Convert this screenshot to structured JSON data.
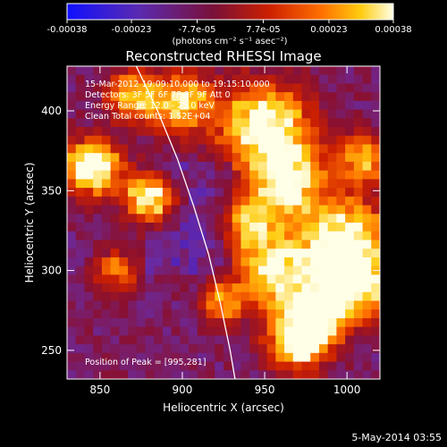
{
  "colorbar": {
    "tick_labels": [
      "-0.00038",
      "-0.00023",
      "-7.7e-05",
      "7.7e-05",
      "0.00023",
      "0.00038"
    ],
    "tick_values": [
      -0.00038,
      -0.00023,
      -7.7e-05,
      7.7e-05,
      0.00023,
      0.00038
    ],
    "range": [
      -0.00038,
      0.00038
    ],
    "unit_label": "(photons cm⁻² s⁻¹ asec⁻²)",
    "colors": [
      "#1010ff",
      "#6a2aa0",
      "#8a1030",
      "#cc2000",
      "#ff7000",
      "#ffcc10",
      "#ffffe8"
    ]
  },
  "chart_data": {
    "type": "heatmap",
    "title": "Reconstructed RHESSI Image",
    "xlabel": "Heliocentric X (arcsec)",
    "ylabel": "Heliocentric Y (arcsec)",
    "xlim": [
      830,
      1020
    ],
    "ylim": [
      232,
      428
    ],
    "x_ticks": [
      850,
      900,
      950,
      1000
    ],
    "y_ticks": [
      250,
      300,
      350,
      400
    ],
    "x_tick_labels": [
      "850",
      "900",
      "950",
      "1000"
    ],
    "y_tick_labels": [
      "250",
      "300",
      "350",
      "400"
    ],
    "annotations": [
      "15-Mar-2012 19:09:10.000 to 19:15:10.000",
      "Detectors: 3F 5F 6F 7F 8F 9F Att 0",
      "Energy Range: 12.0 - 25.0 keV",
      "Clean    Total counts: 1.52E+04"
    ],
    "peak_label": "Position of Peak = [995,281]",
    "peak_position": [
      995,
      281
    ],
    "limb_curve": [
      [
        872,
        428
      ],
      [
        885,
        400
      ],
      [
        897,
        370
      ],
      [
        907,
        340
      ],
      [
        916,
        310
      ],
      [
        923,
        280
      ],
      [
        929,
        250
      ],
      [
        932,
        232
      ]
    ],
    "grid": false
  },
  "footer": {
    "date": "5-May-2014 03:55"
  }
}
